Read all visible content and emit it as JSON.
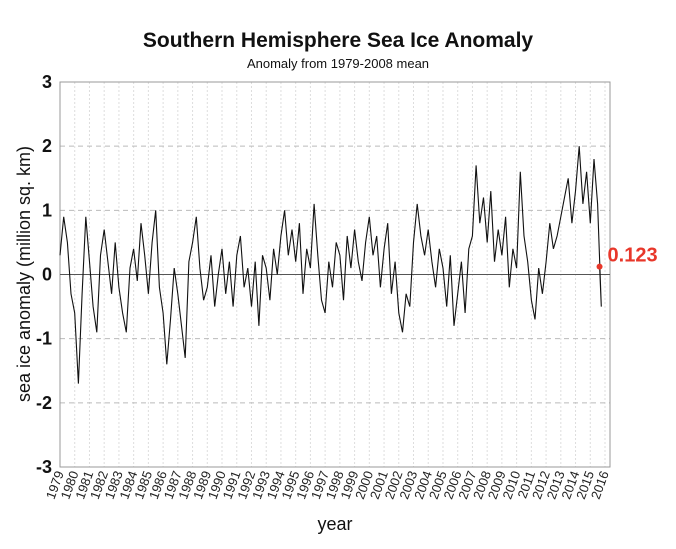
{
  "chart_data": {
    "type": "line",
    "title": "Southern Hemisphere Sea Ice Anomaly",
    "subtitle": "Anomaly from 1979-2008 mean",
    "xlabel": "year",
    "ylabel": "sea ice anomaly (million sq. km)",
    "xlim": [
      1979,
      2016
    ],
    "ylim": [
      -3,
      3
    ],
    "yticks": [
      3,
      2,
      1,
      0,
      -1,
      -2,
      -3
    ],
    "xticks": [
      "1979",
      "1980",
      "1981",
      "1982",
      "1983",
      "1984",
      "1985",
      "1986",
      "1987",
      "1988",
      "1989",
      "1990",
      "1991",
      "1992",
      "1993",
      "1994",
      "1995",
      "1996",
      "1997",
      "1998",
      "1999",
      "2000",
      "2001",
      "2002",
      "2003",
      "2004",
      "2005",
      "2006",
      "2007",
      "2008",
      "2009",
      "2010",
      "2011",
      "2012",
      "2013",
      "2014",
      "2015",
      "2016"
    ],
    "grid": true,
    "line_color": "#111111",
    "highlight_color": "#e8372a",
    "last_value_label": "0.123",
    "series": [
      {
        "x_start": 1979,
        "step_years": 0.25,
        "values": [
          0.3,
          0.9,
          0.5,
          -0.3,
          -0.6,
          -1.7,
          -0.3,
          0.9,
          0.2,
          -0.5,
          -0.9,
          0.3,
          0.7,
          0.2,
          -0.3,
          0.5,
          -0.2,
          -0.6,
          -0.9,
          0.1,
          0.4,
          -0.1,
          0.8,
          0.3,
          -0.3,
          0.5,
          1.0,
          -0.2,
          -0.6,
          -1.4,
          -0.7,
          0.1,
          -0.3,
          -0.8,
          -1.3,
          0.2,
          0.5,
          0.9,
          0.1,
          -0.4,
          -0.2,
          0.3,
          -0.5,
          0.0,
          0.4,
          -0.3,
          0.2,
          -0.5,
          0.3,
          0.6,
          -0.2,
          0.1,
          -0.5,
          0.2,
          -0.8,
          0.3,
          0.1,
          -0.4,
          0.4,
          0.0,
          0.6,
          1.0,
          0.3,
          0.7,
          0.2,
          0.8,
          -0.3,
          0.4,
          0.1,
          1.1,
          0.3,
          -0.4,
          -0.6,
          0.2,
          -0.2,
          0.5,
          0.3,
          -0.4,
          0.6,
          0.1,
          0.7,
          0.2,
          -0.1,
          0.5,
          0.9,
          0.3,
          0.6,
          -0.2,
          0.4,
          0.8,
          -0.3,
          0.2,
          -0.6,
          -0.9,
          -0.3,
          -0.5,
          0.5,
          1.1,
          0.6,
          0.3,
          0.7,
          0.2,
          -0.2,
          0.4,
          0.1,
          -0.5,
          0.3,
          -0.8,
          -0.3,
          0.2,
          -0.6,
          0.4,
          0.6,
          1.7,
          0.8,
          1.2,
          0.5,
          1.3,
          0.2,
          0.7,
          0.3,
          0.9,
          -0.2,
          0.4,
          0.1,
          1.6,
          0.6,
          0.2,
          -0.4,
          -0.7,
          0.1,
          -0.3,
          0.2,
          0.8,
          0.4,
          0.6,
          0.9,
          1.2,
          1.5,
          0.8,
          1.3,
          2.0,
          1.1,
          1.6,
          0.8,
          1.8,
          1.1,
          -0.5,
          0.123
        ]
      }
    ]
  }
}
